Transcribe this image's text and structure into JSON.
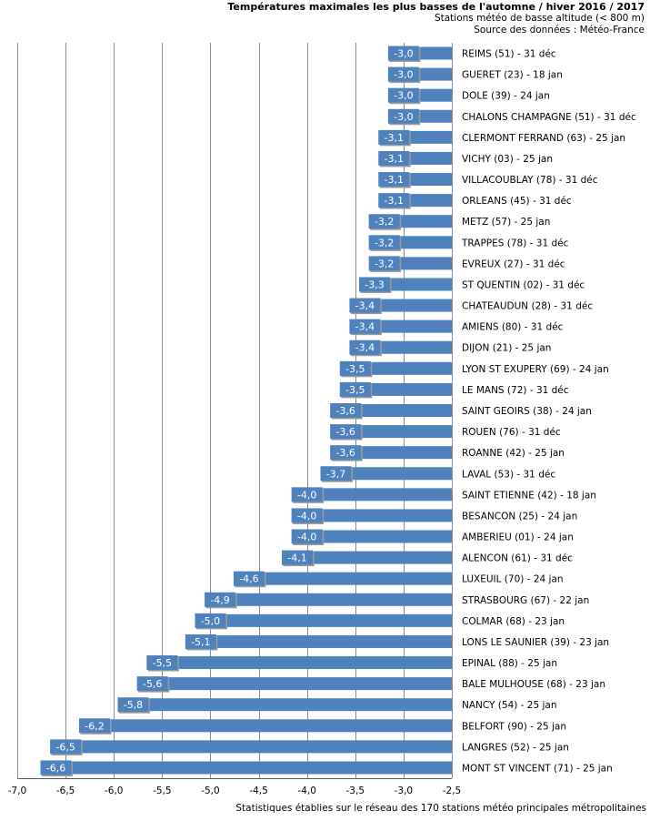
{
  "header": {
    "title": "Températures maximales les plus basses de l'automne / hiver 2016 / 2017",
    "subtitle": "Stations météo de basse altitude (< 800 m)",
    "source": "Source des données : Météo-France"
  },
  "footer": "Statistiques établies sur le réseau des 170 stations météo principales métropolitaines",
  "colors": {
    "bar": "#4F81BD",
    "grid": "#8c8c8c",
    "label_text": "#ffffff"
  },
  "chart_data": {
    "type": "bar",
    "orientation": "horizontal",
    "xlim": [
      -7.0,
      -2.5
    ],
    "xticks": [
      "-7,0",
      "-6,5",
      "-6,0",
      "-5,5",
      "-5,0",
      "-4,5",
      "-4,0",
      "-3,5",
      "-3,0",
      "-2,5"
    ],
    "grid": true,
    "categories": [
      "REIMS (51) - 31 déc",
      "GUERET (23) - 18 jan",
      "DOLE (39) - 24 jan",
      "CHALONS CHAMPAGNE (51) - 31 déc",
      "CLERMONT FERRAND (63) - 25 jan",
      "VICHY (03) - 25 jan",
      "VILLACOUBLAY (78) - 31 déc",
      "ORLEANS (45) - 31 déc",
      "METZ (57) - 25 jan",
      "TRAPPES (78) - 31 déc",
      "EVREUX (27) - 31 déc",
      "ST QUENTIN (02) - 31 déc",
      "CHATEAUDUN (28) - 31 déc",
      "AMIENS (80) - 31 déc",
      "DIJON (21) - 25 jan",
      "LYON ST EXUPERY (69) - 24 jan",
      "LE MANS (72) - 31 déc",
      "SAINT GEOIRS (38) - 24 jan",
      "ROUEN (76) - 31 déc",
      "ROANNE (42) - 25 jan",
      "LAVAL (53) - 31 déc",
      "SAINT ETIENNE (42) - 18 jan",
      "BESANCON (25) - 24 jan",
      "AMBERIEU (01) - 24 jan",
      "ALENCON (61) - 31 déc",
      "LUXEUIL (70) - 24 jan",
      "STRASBOURG (67) - 22 jan",
      "COLMAR (68) - 23 jan",
      "LONS LE SAUNIER (39) - 23 jan",
      "EPINAL (88) - 25 jan",
      "BALE MULHOUSE (68) - 23 jan",
      "NANCY (54) - 25 jan",
      "BELFORT (90) - 25 jan",
      "LANGRES (52) - 25 jan",
      "MONT ST VINCENT (71) - 25 jan"
    ],
    "values": [
      -3.0,
      -3.0,
      -3.0,
      -3.0,
      -3.1,
      -3.1,
      -3.1,
      -3.1,
      -3.2,
      -3.2,
      -3.2,
      -3.3,
      -3.4,
      -3.4,
      -3.4,
      -3.5,
      -3.5,
      -3.6,
      -3.6,
      -3.6,
      -3.7,
      -4.0,
      -4.0,
      -4.0,
      -4.1,
      -4.6,
      -4.9,
      -5.0,
      -5.1,
      -5.5,
      -5.6,
      -5.8,
      -6.2,
      -6.5,
      -6.6
    ],
    "value_labels": [
      "-3,0",
      "-3,0",
      "-3,0",
      "-3,0",
      "-3,1",
      "-3,1",
      "-3,1",
      "-3,1",
      "-3,2",
      "-3,2",
      "-3,2",
      "-3,3",
      "-3,4",
      "-3,4",
      "-3,4",
      "-3,5",
      "-3,5",
      "-3,6",
      "-3,6",
      "-3,6",
      "-3,7",
      "-4,0",
      "-4,0",
      "-4,0",
      "-4,1",
      "-4,6",
      "-4,9",
      "-5,0",
      "-5,1",
      "-5,5",
      "-5,6",
      "-5,8",
      "-6,2",
      "-6,5",
      "-6,6"
    ]
  }
}
